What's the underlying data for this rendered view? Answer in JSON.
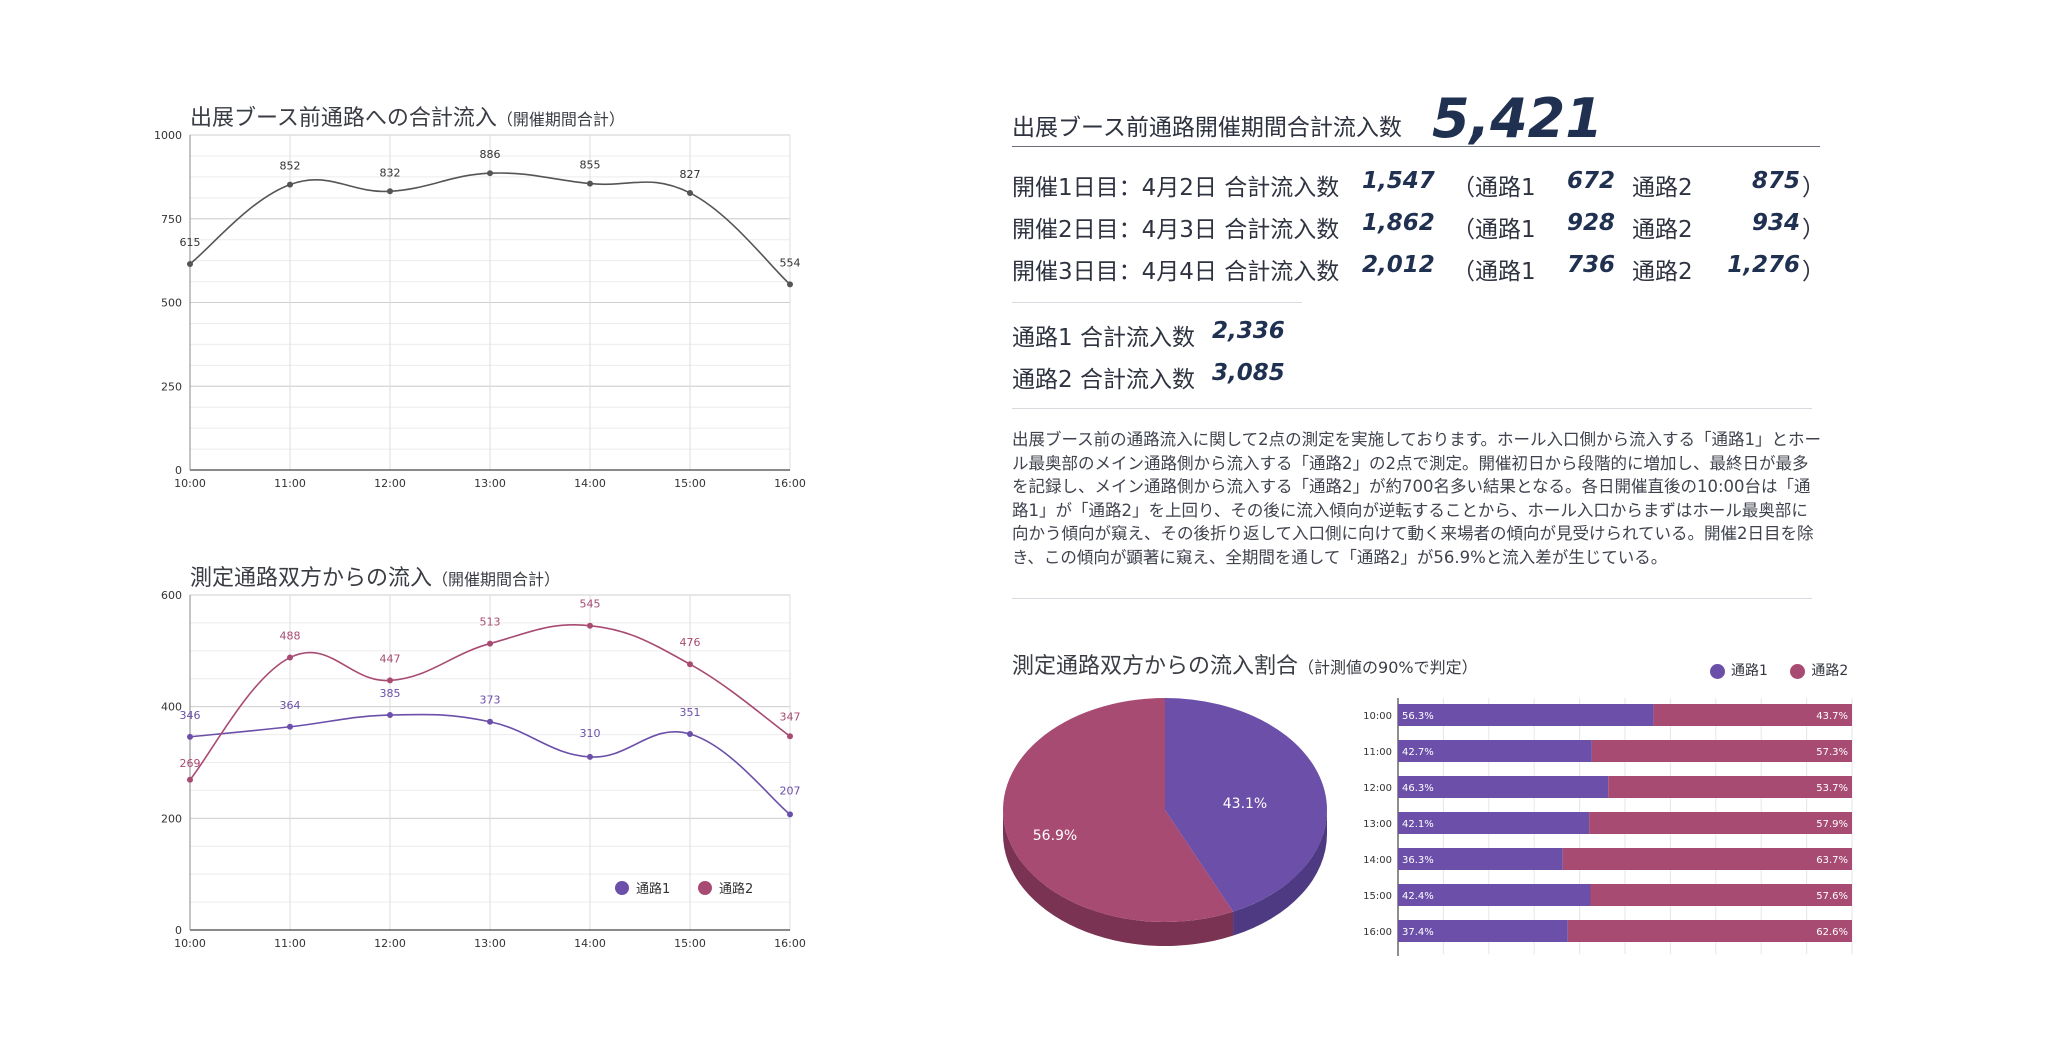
{
  "colors": {
    "series1": "#6b4fa9",
    "series2": "#a84b72",
    "line": "#555555"
  },
  "chart_data": [
    {
      "type": "line",
      "title": "出展ブース前通路への合計流入",
      "subtitle": "（開催期間合計）",
      "categories": [
        "10:00",
        "11:00",
        "12:00",
        "13:00",
        "14:00",
        "15:00",
        "16:00"
      ],
      "values": [
        615,
        852,
        832,
        886,
        855,
        827,
        554
      ],
      "ylim": [
        0,
        1000
      ],
      "yticks": [
        0,
        250,
        500,
        750,
        1000
      ],
      "grid": true
    },
    {
      "type": "line",
      "title": "測定通路双方からの流入",
      "subtitle": "（開催期間合計）",
      "categories": [
        "10:00",
        "11:00",
        "12:00",
        "13:00",
        "14:00",
        "15:00",
        "16:00"
      ],
      "series": [
        {
          "name": "通路1",
          "values": [
            346,
            364,
            385,
            373,
            310,
            351,
            207
          ]
        },
        {
          "name": "通路2",
          "values": [
            269,
            488,
            447,
            513,
            545,
            476,
            347
          ]
        }
      ],
      "ylim": [
        0,
        600
      ],
      "yticks": [
        0,
        200,
        400,
        600
      ],
      "legend": "bottom-right",
      "grid": true
    },
    {
      "type": "pie",
      "title": "測定通路双方からの流入割合",
      "subtitle": "（計測値の90%で判定）",
      "slices": [
        {
          "name": "通路1",
          "value": 43.1,
          "label": "43.1%"
        },
        {
          "name": "通路2",
          "value": 56.9,
          "label": "56.9%"
        }
      ]
    },
    {
      "type": "bar",
      "stacked": "percent",
      "orientation": "horizontal",
      "categories": [
        "10:00",
        "11:00",
        "12:00",
        "13:00",
        "14:00",
        "15:00",
        "16:00"
      ],
      "series": [
        {
          "name": "通路1",
          "values": [
            56.3,
            42.7,
            46.3,
            42.1,
            36.3,
            42.4,
            37.4
          ],
          "labels": [
            "56.3%",
            "42.7%",
            "46.3%",
            "42.1%",
            "36.3%",
            "42.4%",
            "37.4%"
          ]
        },
        {
          "name": "通路2",
          "values": [
            43.7,
            57.3,
            53.7,
            57.9,
            63.7,
            57.6,
            62.6
          ],
          "labels": [
            "43.7%",
            "57.3%",
            "53.7%",
            "57.9%",
            "63.7%",
            "57.6%",
            "62.6%"
          ]
        }
      ],
      "legend": "top-right"
    }
  ],
  "summary": {
    "total_label": "出展ブース前通路開催期間合計流入数",
    "total_value": "5,421",
    "days": [
      {
        "label": "開催1日目：4月2日 合計流入数",
        "total": "1,547",
        "p1_label": "（通路1",
        "p1": "672",
        "p2_label": "通路2",
        "p2": "875",
        "close": "）"
      },
      {
        "label": "開催2日目：4月3日 合計流入数",
        "total": "1,862",
        "p1_label": "（通路1",
        "p1": "928",
        "p2_label": "通路2",
        "p2": "934",
        "close": "）"
      },
      {
        "label": "開催3日目：4月4日 合計流入数",
        "total": "2,012",
        "p1_label": "（通路1",
        "p1": "736",
        "p2_label": "通路2",
        "p2": "1,276",
        "close": "）"
      }
    ],
    "passages": [
      {
        "label": "通路1 合計流入数",
        "value": "2,336"
      },
      {
        "label": "通路2 合計流入数",
        "value": "3,085"
      }
    ],
    "description": "出展ブース前の通路流入に関して2点の測定を実施しております。ホール入口側から流入する「通路1」とホール最奥部のメイン通路側から流入する「通路2」の2点で測定。開催初日から段階的に増加し、最終日が最多を記録し、メイン通路側から流入する「通路2」が約700名多い結果となる。各日開催直後の10:00台は「通路1」が「通路2」を上回り、その後に流入傾向が逆転することから、ホール入口からまずはホール最奥部に向かう傾向が窺え、その後折り返して入口側に向けて動く来場者の傾向が見受けられている。開催2日目を除き、この傾向が顕著に窺え、全期間を通して「通路2」が56.9%と流入差が生じている。"
  }
}
